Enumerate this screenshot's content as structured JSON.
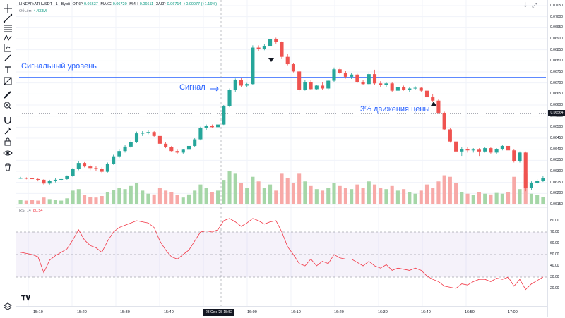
{
  "header": {
    "symbol": "LINEAR:ATHUSDT · 1 · Bybit",
    "open_label": "ОТКР",
    "open_value": "0.06637",
    "high_label": "МАКС",
    "high_value": "0.06720",
    "low_label": "МИН",
    "low_value": "0.06611",
    "close_label": "ЗАКР",
    "close_value": "0.06714",
    "change": "+0.00077 (+1.16%)"
  },
  "volume_legend": {
    "label": "Объём",
    "value": "4.433M"
  },
  "rsi_legend": {
    "label": "RSI 14",
    "value": "80.54"
  },
  "annotations": {
    "signal_level": "Сигнальный уровень",
    "signal": "Сигнал",
    "move": "3% движения цены"
  },
  "price_axis": {
    "labels": [
      "0.07050",
      "0.07000",
      "0.06950",
      "0.06900",
      "0.06850",
      "0.06800",
      "0.06750",
      "0.06700",
      "0.06650",
      "0.06600",
      "0.06550",
      "0.06500",
      "0.06450",
      "0.06400",
      "0.06350",
      "0.06300",
      "0.06250",
      "0.06200",
      "0.06150"
    ],
    "current": "0.06564"
  },
  "rsi_axis": {
    "labels": [
      "80.00",
      "70.00",
      "60.00",
      "50.00",
      "40.00",
      "30.00",
      "20.00"
    ]
  },
  "time_axis": {
    "labels": [
      "15:10",
      "15:20",
      "15:30",
      "15:40",
      "16:00",
      "16:10",
      "16:20",
      "16:30",
      "16:40",
      "16:50",
      "17:00"
    ],
    "current": "28 Сен '25  15:52"
  },
  "colors": {
    "up": "#26a69a",
    "down": "#ef5350",
    "level": "#2962ff",
    "rsi": "#f23645",
    "band": "#7e57c2"
  },
  "chart_data": {
    "type": "candlestick",
    "ohlc": [
      [
        0.0627,
        0.06275,
        0.06266,
        0.0627
      ],
      [
        0.0627,
        0.06273,
        0.06264,
        0.06268
      ],
      [
        0.06268,
        0.06272,
        0.06262,
        0.06265
      ],
      [
        0.06265,
        0.06268,
        0.06255,
        0.06262
      ],
      [
        0.06262,
        0.06265,
        0.0624,
        0.06245
      ],
      [
        0.06245,
        0.06262,
        0.0624,
        0.06258
      ],
      [
        0.06258,
        0.06268,
        0.0625,
        0.06262
      ],
      [
        0.06262,
        0.0627,
        0.06255,
        0.06265
      ],
      [
        0.06265,
        0.06282,
        0.06262,
        0.06278
      ],
      [
        0.06278,
        0.06315,
        0.06275,
        0.0631
      ],
      [
        0.0631,
        0.06345,
        0.06305,
        0.06338
      ],
      [
        0.06338,
        0.06342,
        0.06318,
        0.06322
      ],
      [
        0.06322,
        0.0633,
        0.06305,
        0.06315
      ],
      [
        0.06315,
        0.06325,
        0.063,
        0.06312
      ],
      [
        0.06312,
        0.06318,
        0.0629,
        0.06298
      ],
      [
        0.06298,
        0.0634,
        0.06295,
        0.06335
      ],
      [
        0.06335,
        0.06375,
        0.0633,
        0.06368
      ],
      [
        0.06368,
        0.064,
        0.0636,
        0.06392
      ],
      [
        0.06392,
        0.0642,
        0.06385,
        0.06412
      ],
      [
        0.06412,
        0.0644,
        0.06405,
        0.06432
      ],
      [
        0.06432,
        0.0648,
        0.06428,
        0.06472
      ],
      [
        0.06472,
        0.06482,
        0.0646,
        0.06474
      ],
      [
        0.06474,
        0.06485,
        0.06468,
        0.06478
      ],
      [
        0.06478,
        0.06482,
        0.06455,
        0.0646
      ],
      [
        0.0646,
        0.06465,
        0.06418,
        0.06425
      ],
      [
        0.06425,
        0.06432,
        0.06405,
        0.0641
      ],
      [
        0.0641,
        0.06415,
        0.06388,
        0.06392
      ],
      [
        0.06392,
        0.06398,
        0.0638,
        0.06385
      ],
      [
        0.06385,
        0.06402,
        0.0638,
        0.06398
      ],
      [
        0.06398,
        0.0642,
        0.06392,
        0.06415
      ],
      [
        0.06415,
        0.0645,
        0.0641,
        0.06445
      ],
      [
        0.06445,
        0.06502,
        0.0644,
        0.06495
      ],
      [
        0.06495,
        0.06512,
        0.06488,
        0.06505
      ],
      [
        0.06505,
        0.06512,
        0.06495,
        0.065
      ],
      [
        0.065,
        0.0652,
        0.06492,
        0.06512
      ],
      [
        0.06512,
        0.066,
        0.0651,
        0.06595
      ],
      [
        0.06595,
        0.06675,
        0.0659,
        0.06668
      ],
      [
        0.06668,
        0.0672,
        0.0666,
        0.06714
      ],
      [
        0.06714,
        0.06722,
        0.0668,
        0.06688
      ],
      [
        0.06688,
        0.067,
        0.0668,
        0.06695
      ],
      [
        0.06695,
        0.0687,
        0.0669,
        0.0686
      ],
      [
        0.0686,
        0.0687,
        0.06845,
        0.06855
      ],
      [
        0.06855,
        0.06875,
        0.06848,
        0.06868
      ],
      [
        0.06868,
        0.06902,
        0.0686,
        0.06898
      ],
      [
        0.06898,
        0.06905,
        0.06878,
        0.06885
      ],
      [
        0.06885,
        0.06888,
        0.0681,
        0.06818
      ],
      [
        0.06818,
        0.0683,
        0.0678,
        0.06785
      ],
      [
        0.06785,
        0.0679,
        0.06748,
        0.06752
      ],
      [
        0.06752,
        0.06758,
        0.0666,
        0.0667
      ],
      [
        0.0667,
        0.06712,
        0.06665,
        0.06705
      ],
      [
        0.06705,
        0.06712,
        0.06668,
        0.06672
      ],
      [
        0.06672,
        0.06692,
        0.06668,
        0.06688
      ],
      [
        0.06688,
        0.06705,
        0.0667,
        0.06675
      ],
      [
        0.06675,
        0.06715,
        0.0667,
        0.0671
      ],
      [
        0.0671,
        0.0677,
        0.06705,
        0.06762
      ],
      [
        0.06762,
        0.0677,
        0.0674,
        0.06745
      ],
      [
        0.06745,
        0.06755,
        0.0672,
        0.06728
      ],
      [
        0.06728,
        0.06745,
        0.06718,
        0.06738
      ],
      [
        0.06738,
        0.06742,
        0.067,
        0.06705
      ],
      [
        0.06705,
        0.06715,
        0.0669,
        0.06695
      ],
      [
        0.06695,
        0.06748,
        0.0669,
        0.0674
      ],
      [
        0.0674,
        0.0676,
        0.0669,
        0.06698
      ],
      [
        0.06698,
        0.06708,
        0.0668,
        0.0669
      ],
      [
        0.0669,
        0.06705,
        0.0668,
        0.06698
      ],
      [
        0.06698,
        0.06705,
        0.0666,
        0.06665
      ],
      [
        0.06665,
        0.0669,
        0.0666,
        0.0668
      ],
      [
        0.0668,
        0.06688,
        0.06665,
        0.0667
      ],
      [
        0.0667,
        0.0668,
        0.0666,
        0.06675
      ],
      [
        0.06675,
        0.06685,
        0.06668,
        0.06678
      ],
      [
        0.06678,
        0.06682,
        0.0666,
        0.06665
      ],
      [
        0.06665,
        0.06668,
        0.0663,
        0.06635
      ],
      [
        0.06635,
        0.0665,
        0.06615,
        0.0662
      ],
      [
        0.0662,
        0.06625,
        0.0656,
        0.06565
      ],
      [
        0.06565,
        0.0657,
        0.06485,
        0.0649
      ],
      [
        0.0649,
        0.06495,
        0.0643,
        0.06435
      ],
      [
        0.06435,
        0.0644,
        0.06385,
        0.0639
      ],
      [
        0.0639,
        0.0641,
        0.0637,
        0.06402
      ],
      [
        0.06402,
        0.0641,
        0.06385,
        0.06395
      ],
      [
        0.06395,
        0.06405,
        0.06385,
        0.06398
      ],
      [
        0.06398,
        0.06405,
        0.0637,
        0.0639
      ],
      [
        0.0639,
        0.0641,
        0.06385,
        0.06405
      ],
      [
        0.06405,
        0.0641,
        0.0638,
        0.06385
      ],
      [
        0.06385,
        0.06405,
        0.0638,
        0.064
      ],
      [
        0.064,
        0.0642,
        0.06395,
        0.06415
      ],
      [
        0.06415,
        0.0642,
        0.0639,
        0.06395
      ],
      [
        0.06395,
        0.064,
        0.0634,
        0.06345
      ],
      [
        0.06345,
        0.0639,
        0.0634,
        0.06385
      ],
      [
        0.06385,
        0.0639,
        0.0621,
        0.06225
      ],
      [
        0.06225,
        0.06255,
        0.06215,
        0.06248
      ],
      [
        0.06248,
        0.06265,
        0.06242,
        0.06258
      ],
      [
        0.06258,
        0.0628,
        0.06252,
        0.0627
      ]
    ],
    "volume": [
      6,
      5,
      6,
      5,
      9,
      7,
      6,
      5,
      8,
      18,
      20,
      12,
      10,
      9,
      11,
      16,
      19,
      22,
      20,
      24,
      28,
      18,
      14,
      13,
      22,
      18,
      16,
      12,
      9,
      13,
      18,
      26,
      22,
      16,
      18,
      32,
      44,
      40,
      28,
      22,
      36,
      30,
      22,
      26,
      18,
      40,
      34,
      28,
      40,
      30,
      24,
      20,
      18,
      22,
      28,
      24,
      22,
      20,
      26,
      22,
      30,
      26,
      22,
      20,
      24,
      18,
      20,
      16,
      14,
      18,
      26,
      22,
      30,
      38,
      36,
      28,
      16,
      14,
      12,
      16,
      14,
      13,
      15,
      14,
      16,
      36,
      20,
      40,
      14,
      12,
      10
    ],
    "rsi": [
      52,
      51,
      50,
      48,
      34,
      45,
      49,
      52,
      55,
      63,
      72,
      63,
      58,
      56,
      52,
      62,
      70,
      74,
      76,
      78,
      80,
      79,
      78,
      74,
      62,
      54,
      48,
      46,
      50,
      54,
      62,
      70,
      71,
      70,
      72,
      80,
      82,
      79,
      75,
      78,
      82,
      80,
      77,
      79,
      80,
      70,
      57,
      50,
      42,
      40,
      46,
      40,
      44,
      42,
      50,
      47,
      46,
      46,
      43,
      40,
      44,
      40,
      38,
      41,
      36,
      38,
      37,
      36,
      38,
      36,
      31,
      28,
      26,
      22,
      21,
      20,
      24,
      23,
      26,
      28,
      28,
      26,
      29,
      28,
      30,
      22,
      28,
      19,
      24,
      27,
      30
    ],
    "price_range": [
      0.0615,
      0.0705
    ],
    "rsi_range": [
      20,
      80
    ],
    "rsi_bands": [
      70,
      30
    ],
    "signal_level": 0.06725,
    "current_price": 0.06564
  }
}
